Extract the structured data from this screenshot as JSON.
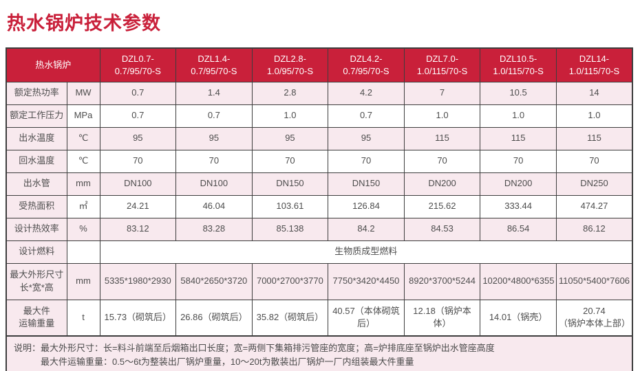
{
  "title": "热水锅炉技术参数",
  "colors": {
    "accent_red": "#c9203a",
    "row_pink": "#f8e9ee",
    "border": "#3d3d3d",
    "header_text": "#ffffff",
    "cell_text": "#4d4d4d"
  },
  "table": {
    "corner": "热水锅炉",
    "models": [
      "DZL0.7-\n0.7/95/70-S",
      "DZL1.4-\n0.7/95/70-S",
      "DZL2.8-\n1.0/95/70-S",
      "DZL4.2-\n0.7/95/70-S",
      "DZL7.0-\n1.0/115/70-S",
      "DZL10.5-\n1.0/115/70-S",
      "DZL14-\n1.0/115/70-S"
    ],
    "rows": [
      {
        "label": "额定热功率",
        "unit": "MW",
        "values": [
          "0.7",
          "1.4",
          "2.8",
          "4.2",
          "7",
          "10.5",
          "14"
        ]
      },
      {
        "label": "额定工作压力",
        "unit": "MPa",
        "values": [
          "0.7",
          "0.7",
          "1.0",
          "0.7",
          "1.0",
          "1.0",
          "1.0"
        ]
      },
      {
        "label": "出水温度",
        "unit": "℃",
        "values": [
          "95",
          "95",
          "95",
          "95",
          "115",
          "115",
          "115"
        ]
      },
      {
        "label": "回水温度",
        "unit": "℃",
        "values": [
          "70",
          "70",
          "70",
          "70",
          "70",
          "70",
          "70"
        ]
      },
      {
        "label": "出水管",
        "unit": "mm",
        "values": [
          "DN100",
          "DN100",
          "DN150",
          "DN150",
          "DN200",
          "DN200",
          "DN250"
        ]
      },
      {
        "label": "受热面积",
        "unit": "㎡",
        "values": [
          "24.21",
          "46.04",
          "103.61",
          "126.84",
          "215.62",
          "333.44",
          "474.27"
        ]
      },
      {
        "label": "设计热效率",
        "unit": "%",
        "values": [
          "83.12",
          "83.28",
          "85.138",
          "84.2",
          "84.53",
          "86.54",
          "86.12"
        ]
      },
      {
        "label": "设计燃料",
        "unit": "",
        "span_value": "生物质成型燃料"
      },
      {
        "label": "最大外形尺寸\n长*宽*高",
        "unit": "mm",
        "values": [
          "5335*1980*2930",
          "5840*2650*3720",
          "7000*2700*3770",
          "7750*3420*4450",
          "8920*3700*5244",
          "10200*4800*6355",
          "11050*5400*7606"
        ]
      },
      {
        "label": "最大件\n运输重量",
        "unit": "t",
        "values": [
          "15.73（砌筑后）",
          "26.86（砌筑后）",
          "35.82（砌筑后）",
          "40.57（本体砌筑后）",
          "12.18（锅炉本体）",
          "14.01（锅壳）",
          "20.74\n（锅炉本体上部）"
        ]
      }
    ],
    "note": {
      "label": "说明：",
      "lines": [
        "最大外形尺寸：长=料斗前端至后烟箱出口长度；宽=两侧下集箱排污管座的宽度；高=炉排底座至锅炉出水管座高度",
        "最大件运输重量：0.5～6t为整装出厂锅炉重量，10～20t为散装出厂锅炉一厂内组装最大件重量"
      ]
    }
  }
}
